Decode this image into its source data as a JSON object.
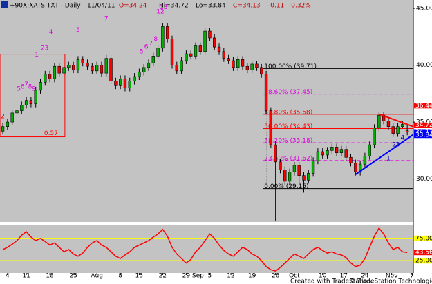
{
  "header": {
    "symbol": "+90X:XATS.TXT - Daily",
    "date": "11/04/11",
    "open": "O=34.24",
    "high": "Hi=34.72",
    "low": "Lo=33.84",
    "close": "C=34.13",
    "change": "-0.11",
    "change_pct": "-0.32%"
  },
  "footer": {
    "credit": "Created with TradeStation.",
    "copyright": "© TradeStation Technologies, Inc. All rights reserved."
  },
  "chart_data": [
    {
      "type": "candlestick",
      "up_color": "#00b000",
      "down_color": "#ff0000",
      "x": [
        0,
        1,
        2,
        3,
        4,
        5,
        6,
        7,
        8,
        9,
        10,
        11,
        12,
        13,
        14,
        15,
        16,
        17,
        18,
        19,
        20,
        21,
        22,
        23,
        24,
        25,
        26,
        27,
        28,
        29,
        30,
        31,
        32,
        33,
        34,
        35,
        36,
        37,
        38,
        39,
        40,
        41,
        42,
        43,
        44,
        45,
        46,
        47,
        48,
        49,
        50,
        51,
        52,
        53,
        54,
        55,
        56,
        57,
        58,
        59,
        60,
        61,
        62,
        63,
        64,
        65,
        66,
        67,
        68,
        69,
        70,
        71,
        72,
        73,
        74,
        75,
        76,
        77,
        78,
        79,
        80,
        81,
        82,
        83,
        84,
        85,
        86
      ],
      "open": [
        34.2,
        34.6,
        35.0,
        35.8,
        36.0,
        36.5,
        36.9,
        36.6,
        37.8,
        38.5,
        39.2,
        38.8,
        39.9,
        39.3,
        39.8,
        40.0,
        39.6,
        40.5,
        40.2,
        39.9,
        39.5,
        40.0,
        39.3,
        40.6,
        38.6,
        38.2,
        38.8,
        38.0,
        38.6,
        39.0,
        39.4,
        39.8,
        40.2,
        40.8,
        41.5,
        43.4,
        42.3,
        40.0,
        39.5,
        40.4,
        41.0,
        40.8,
        41.7,
        41.2,
        43.0,
        42.4,
        41.6,
        41.2,
        40.6,
        40.4,
        39.8,
        40.5,
        39.9,
        39.6,
        40.1,
        39.8,
        39.2,
        36.0,
        33.0,
        31.5,
        30.8,
        29.8,
        30.6,
        31.2,
        30.3,
        29.9,
        30.5,
        31.6,
        32.4,
        32.1,
        32.5,
        32.8,
        32.3,
        32.6,
        31.9,
        31.4,
        30.6,
        31.3,
        32.0,
        33.0,
        34.5,
        35.6,
        35.1,
        34.6,
        34.0,
        34.6,
        34.24
      ],
      "high": [
        34.9,
        35.3,
        36.1,
        36.3,
        36.8,
        37.2,
        37.2,
        38.1,
        38.8,
        39.5,
        39.5,
        40.2,
        40.2,
        40.1,
        40.3,
        40.3,
        40.8,
        40.8,
        40.5,
        40.2,
        40.3,
        40.3,
        40.9,
        40.9,
        38.9,
        39.1,
        39.1,
        38.9,
        39.3,
        39.7,
        40.1,
        40.5,
        41.1,
        41.8,
        43.7,
        43.7,
        42.6,
        40.3,
        40.7,
        41.3,
        41.3,
        42.0,
        42.0,
        43.3,
        43.3,
        42.7,
        41.9,
        41.5,
        40.9,
        40.7,
        40.8,
        40.8,
        40.2,
        40.4,
        40.4,
        40.1,
        39.5,
        36.3,
        33.3,
        31.8,
        31.1,
        30.9,
        31.5,
        31.5,
        30.6,
        30.8,
        31.9,
        32.7,
        32.7,
        32.8,
        33.1,
        33.1,
        32.9,
        32.9,
        32.2,
        31.7,
        31.6,
        32.3,
        33.3,
        34.8,
        35.9,
        35.9,
        35.4,
        34.9,
        34.9,
        35.1,
        34.72
      ],
      "low": [
        33.9,
        34.3,
        34.7,
        35.5,
        35.7,
        36.2,
        36.3,
        36.3,
        37.5,
        38.2,
        38.5,
        38.5,
        39.0,
        39.0,
        39.5,
        39.3,
        39.3,
        39.9,
        39.6,
        39.2,
        39.2,
        39.0,
        39.0,
        38.3,
        37.9,
        37.9,
        37.7,
        37.7,
        38.3,
        38.7,
        39.1,
        39.5,
        39.9,
        40.5,
        41.2,
        42.0,
        39.7,
        39.2,
        39.2,
        40.1,
        40.5,
        40.5,
        40.9,
        40.9,
        42.1,
        41.3,
        40.9,
        40.3,
        40.1,
        39.5,
        39.5,
        39.6,
        39.3,
        39.3,
        39.5,
        38.9,
        35.7,
        32.7,
        26.3,
        30.5,
        29.5,
        29.5,
        30.3,
        29.6,
        28.8,
        29.6,
        30.2,
        31.3,
        31.8,
        31.8,
        32.2,
        32.0,
        32.0,
        31.6,
        31.1,
        30.3,
        30.3,
        31.0,
        31.7,
        32.7,
        34.2,
        34.8,
        34.3,
        33.7,
        33.7,
        34.5,
        33.84
      ],
      "close": [
        34.6,
        35.0,
        35.8,
        36.0,
        36.5,
        36.9,
        36.6,
        37.8,
        38.5,
        39.2,
        38.8,
        39.9,
        39.3,
        39.8,
        40.0,
        39.6,
        40.5,
        40.2,
        39.9,
        39.5,
        40.0,
        39.3,
        40.6,
        38.6,
        38.2,
        38.8,
        38.0,
        38.6,
        39.0,
        39.4,
        39.8,
        40.2,
        40.8,
        41.5,
        43.4,
        42.3,
        40.0,
        39.5,
        40.4,
        41.0,
        40.8,
        41.7,
        41.2,
        43.0,
        42.4,
        41.6,
        41.2,
        40.6,
        40.4,
        39.8,
        40.5,
        39.9,
        39.6,
        40.1,
        39.8,
        39.2,
        36.0,
        33.0,
        31.5,
        30.8,
        29.8,
        30.6,
        31.2,
        30.3,
        29.9,
        30.5,
        31.6,
        32.4,
        32.1,
        32.5,
        32.8,
        32.3,
        32.6,
        31.9,
        31.4,
        30.6,
        31.3,
        32.0,
        33.0,
        34.5,
        35.6,
        35.1,
        34.6,
        34.0,
        34.6,
        34.8,
        34.13
      ],
      "xlim": [
        -0.6,
        87.3
      ],
      "ylim": [
        26.22,
        45.73
      ],
      "xticks": [
        {
          "value": 1,
          "label": "4"
        },
        {
          "value": 5,
          "label": "11"
        },
        {
          "value": 10,
          "label": "18"
        },
        {
          "value": 15,
          "label": "25"
        },
        {
          "value": 20,
          "label": "Aug"
        },
        {
          "value": 25,
          "label": "8"
        },
        {
          "value": 29,
          "label": "15"
        },
        {
          "value": 34,
          "label": "22"
        },
        {
          "value": 39,
          "label": "29"
        },
        {
          "value": 41.5,
          "label": "Sep"
        },
        {
          "value": 44,
          "label": "5"
        },
        {
          "value": 48.5,
          "label": "12"
        },
        {
          "value": 53,
          "label": "19"
        },
        {
          "value": 58,
          "label": "26"
        },
        {
          "value": 62,
          "label": "Oct"
        },
        {
          "value": 68,
          "label": "10"
        },
        {
          "value": 72.5,
          "label": "17"
        },
        {
          "value": 77,
          "label": "24"
        },
        {
          "value": 82.7,
          "label": "Nov"
        },
        {
          "value": 87,
          "label": "7"
        }
      ],
      "yticks": [
        {
          "value": 30,
          "label": "30.00"
        },
        {
          "value": 35,
          "label": "35.00"
        },
        {
          "value": 40,
          "label": "40.00"
        },
        {
          "value": 45,
          "label": "45.00"
        }
      ],
      "price_markers": [
        {
          "value": 36.44,
          "label": "36.44",
          "color": "#ff0000"
        },
        {
          "value": 34.72,
          "label": "34.72",
          "color": "#ff0000"
        },
        {
          "value": 34.13,
          "label": "34.13",
          "color": "#0000ff"
        },
        {
          "value": 33.84,
          "label": "33.84",
          "color": "#0000ff"
        }
      ],
      "fib_start": 55.3,
      "fib_levels": [
        {
          "value": 39.71,
          "label": "100.00% (39.71)",
          "color": "#000000",
          "dashed": false
        },
        {
          "value": 37.45,
          "label": "78.60% (37.45)",
          "color": "#e000e0",
          "dashed": true
        },
        {
          "value": 35.68,
          "label": "61.80% (35.68)",
          "color": "#ff0000",
          "dashed": false
        },
        {
          "value": 34.43,
          "label": "50.00% (34.43)",
          "color": "#ff0000",
          "dashed": false
        },
        {
          "value": 33.18,
          "label": "38.20% (33.18)",
          "color": "#e000e0",
          "dashed": true
        },
        {
          "value": 31.62,
          "label": "23.60% (31.62)",
          "color": "#e000e0",
          "dashed": true
        },
        {
          "value": 29.15,
          "label": "0.00% (29.15)",
          "color": "#000000",
          "dashed": false
        }
      ],
      "box": {
        "x": [
          -0.6,
          13.2
        ],
        "y": [
          33.7,
          40.97
        ],
        "label": "0.57",
        "color": "#ff0000"
      },
      "trendlines": [
        {
          "x": [
            80,
            87.3
          ],
          "y": [
            35.7,
            34.6
          ],
          "color": "#ff0000"
        },
        {
          "x": [
            75,
            87.3
          ],
          "y": [
            30.4,
            33.9
          ],
          "color": "#0000ff"
        }
      ],
      "count_labels": [
        {
          "x": 0,
          "y": 35.5,
          "label": "2",
          "color": "#ff0000"
        },
        {
          "x": 3.4,
          "y": 37.9,
          "label": "5",
          "color": "#e000e0"
        },
        {
          "x": 4.2,
          "y": 38.1,
          "label": "6",
          "color": "#e000e0"
        },
        {
          "x": 5,
          "y": 38.3,
          "label": "7",
          "color": "#e000e0"
        },
        {
          "x": 5.8,
          "y": 38.1,
          "label": "8",
          "color": "#e000e0"
        },
        {
          "x": 6.6,
          "y": 37.9,
          "label": "9",
          "color": "#e000e0"
        },
        {
          "x": 7.2,
          "y": 40.9,
          "label": "1",
          "color": "#e000e0"
        },
        {
          "x": 8.5,
          "y": 41.5,
          "label": "2",
          "color": "#e000e0"
        },
        {
          "x": 9.3,
          "y": 41.5,
          "label": "3",
          "color": "#e000e0"
        },
        {
          "x": 10.2,
          "y": 42.9,
          "label": "4",
          "color": "#e000e0"
        },
        {
          "x": 16,
          "y": 43.1,
          "label": "5",
          "color": "#e000e0"
        },
        {
          "x": 22,
          "y": 44.1,
          "label": "7",
          "color": "#e000e0"
        },
        {
          "x": 29.5,
          "y": 41.2,
          "label": "5",
          "color": "#e000e0"
        },
        {
          "x": 30.5,
          "y": 41.6,
          "label": "6",
          "color": "#e000e0"
        },
        {
          "x": 31.5,
          "y": 41.9,
          "label": "7",
          "color": "#e000e0"
        },
        {
          "x": 32.5,
          "y": 42.3,
          "label": "8",
          "color": "#e000e0"
        },
        {
          "x": 33.5,
          "y": 44.7,
          "label": "12",
          "color": "#e000e0"
        },
        {
          "x": 34.2,
          "y": 45.1,
          "label": "13",
          "color": "#e000e0"
        },
        {
          "x": 82,
          "y": 31.8,
          "label": "1",
          "color": "#0000c0"
        },
        {
          "x": 83.2,
          "y": 33.0,
          "label": "2",
          "color": "#0000c0"
        },
        {
          "x": 84,
          "y": 33.0,
          "label": "3",
          "color": "#0000c0"
        },
        {
          "x": 85,
          "y": 33.6,
          "label": "4",
          "color": "#0000c0"
        }
      ]
    },
    {
      "type": "line",
      "ylim": [
        -2.4,
        105.6
      ],
      "series": [
        {
          "color": "#ff0000",
          "values": [
            50,
            55,
            62,
            70,
            82,
            90,
            78,
            70,
            75,
            68,
            60,
            65,
            55,
            45,
            50,
            40,
            35,
            42,
            55,
            65,
            70,
            60,
            55,
            45,
            35,
            30,
            38,
            45,
            55,
            60,
            65,
            70,
            78,
            85,
            95,
            80,
            55,
            40,
            30,
            20,
            28,
            45,
            55,
            70,
            85,
            75,
            60,
            48,
            40,
            35,
            45,
            55,
            50,
            40,
            35,
            25,
            12,
            5,
            2,
            10,
            20,
            30,
            40,
            35,
            30,
            40,
            50,
            55,
            48,
            42,
            45,
            40,
            38,
            32,
            20,
            12,
            15,
            30,
            55,
            80,
            98,
            85,
            65,
            50,
            55,
            45,
            43.56
          ]
        }
      ],
      "hlines": [
        {
          "value": 75,
          "label": "75.00",
          "color": "#ffff00"
        },
        {
          "value": 25,
          "label": "25.00",
          "color": "#ffff00"
        }
      ],
      "last_marker": {
        "value": 43.56,
        "label": "43.56",
        "color": "#ff0000"
      }
    }
  ]
}
